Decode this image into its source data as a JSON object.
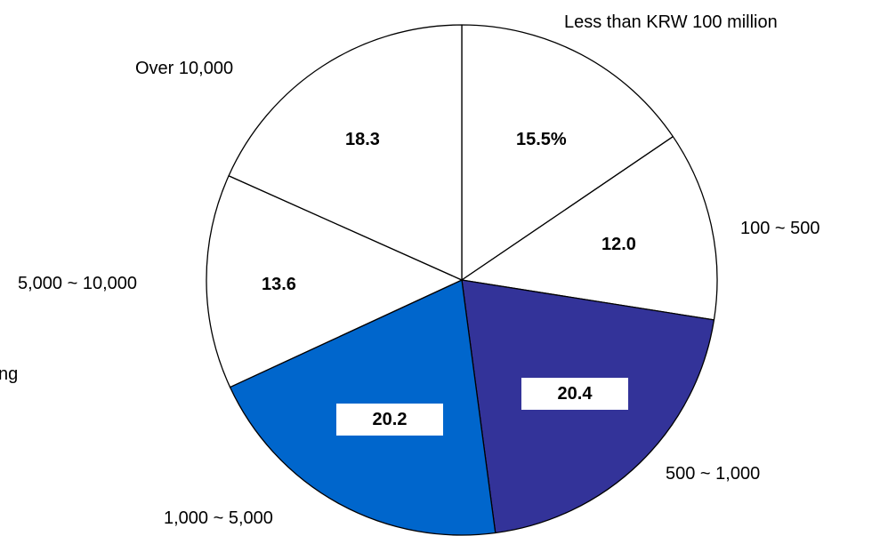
{
  "chart_data": {
    "type": "pie",
    "title": "",
    "categories": [
      "Less than KRW 100 million",
      "100 ~ 500",
      "500 ~ 1,000",
      "1,000 ~ 5,000",
      "5,000 ~ 10,000",
      "Over 10,000"
    ],
    "values": [
      15.5,
      12.0,
      20.4,
      20.2,
      13.6,
      18.3
    ],
    "value_labels": [
      "15.5%",
      "12.0",
      "20.4",
      "20.2",
      "13.6",
      "18.3"
    ],
    "colors": [
      "#ffffff",
      "#ffffff",
      "#333399",
      "#0066cc",
      "#ffffff",
      "#ffffff"
    ],
    "start_angle_deg": 0,
    "direction": "clockwise",
    "cropped_text": "ng"
  }
}
